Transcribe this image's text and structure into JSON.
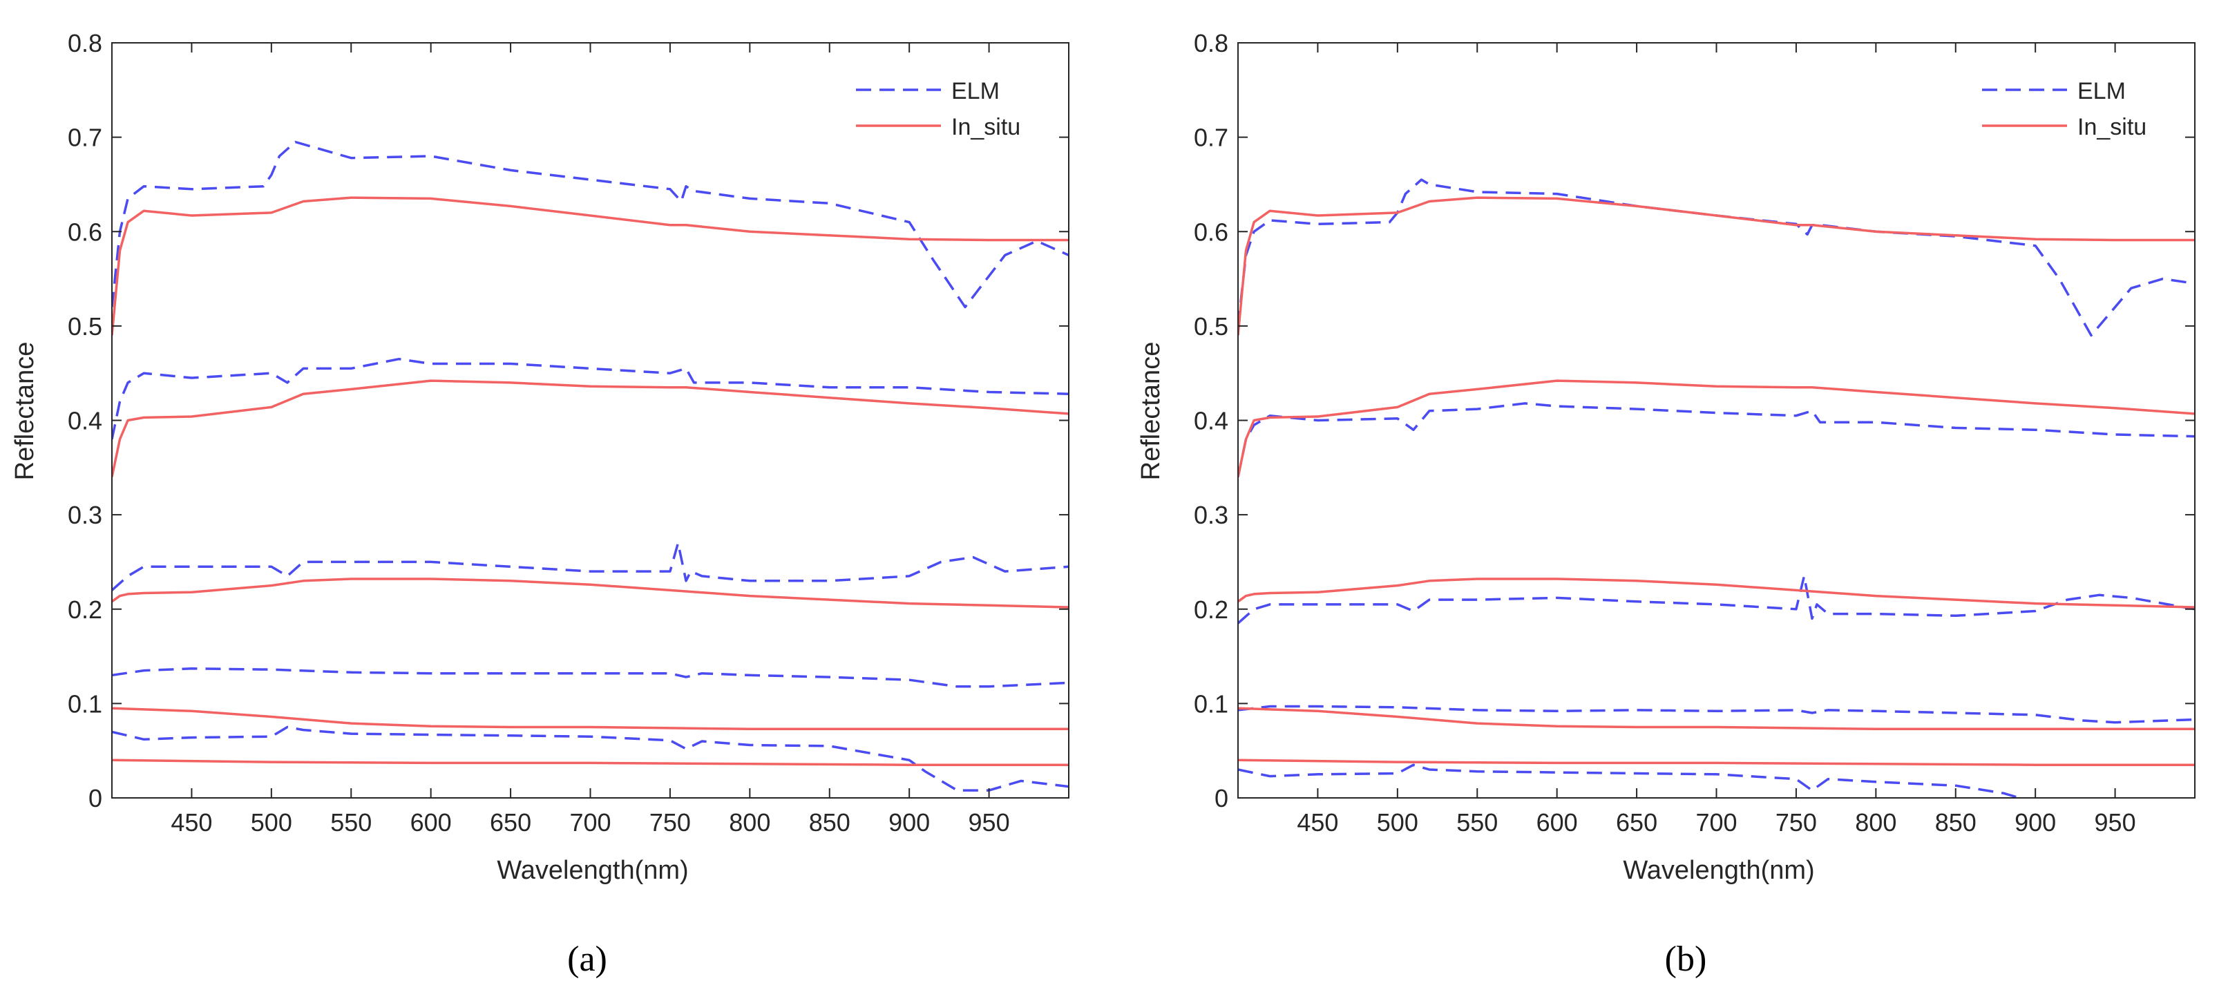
{
  "figure": {
    "captions": [
      "(a)",
      "(b)"
    ]
  },
  "colors": {
    "elm": "#4b4bf2",
    "in_situ": "#f26262",
    "axis": "#262626"
  },
  "chart_data": [
    {
      "type": "line",
      "panel": "(a)",
      "xlabel": "Wavelength(nm)",
      "ylabel": "Reflectance",
      "xlim": [
        400,
        1000
      ],
      "ylim": [
        0,
        0.8
      ],
      "xticks": [
        450,
        500,
        550,
        600,
        650,
        700,
        750,
        800,
        850,
        900,
        950
      ],
      "yticks": [
        0,
        0.1,
        0.2,
        0.3,
        0.4,
        0.5,
        0.6,
        0.7,
        0.8
      ],
      "legend": {
        "position": "top-right",
        "entries": [
          "ELM",
          "In_situ"
        ]
      },
      "series": [
        {
          "name": "ELM",
          "style": "dashed",
          "x": [
            400,
            405,
            410,
            420,
            450,
            495,
            500,
            505,
            515,
            550,
            600,
            650,
            700,
            750,
            757,
            760,
            765,
            800,
            850,
            900,
            915,
            935,
            960,
            980,
            1000
          ],
          "y": [
            0.52,
            0.6,
            0.635,
            0.648,
            0.645,
            0.648,
            0.66,
            0.68,
            0.695,
            0.678,
            0.68,
            0.665,
            0.655,
            0.645,
            0.632,
            0.648,
            0.643,
            0.635,
            0.63,
            0.61,
            0.57,
            0.52,
            0.575,
            0.59,
            0.575
          ]
        },
        {
          "name": "In_situ",
          "style": "solid",
          "x": [
            400,
            405,
            410,
            420,
            450,
            500,
            520,
            550,
            600,
            650,
            700,
            750,
            760,
            800,
            850,
            900,
            950,
            1000
          ],
          "y": [
            0.49,
            0.58,
            0.61,
            0.622,
            0.617,
            0.62,
            0.632,
            0.636,
            0.635,
            0.627,
            0.617,
            0.607,
            0.607,
            0.6,
            0.596,
            0.592,
            0.591,
            0.591
          ]
        },
        {
          "name": "ELM",
          "style": "dashed",
          "x": [
            400,
            405,
            410,
            420,
            450,
            500,
            510,
            520,
            550,
            580,
            600,
            650,
            700,
            750,
            760,
            765,
            800,
            850,
            900,
            950,
            1000
          ],
          "y": [
            0.38,
            0.42,
            0.44,
            0.45,
            0.445,
            0.45,
            0.44,
            0.455,
            0.455,
            0.465,
            0.46,
            0.46,
            0.455,
            0.45,
            0.455,
            0.44,
            0.44,
            0.435,
            0.435,
            0.43,
            0.428
          ]
        },
        {
          "name": "In_situ",
          "style": "solid",
          "x": [
            400,
            405,
            410,
            420,
            450,
            500,
            520,
            550,
            600,
            650,
            700,
            750,
            760,
            800,
            850,
            900,
            950,
            1000
          ],
          "y": [
            0.34,
            0.38,
            0.4,
            0.403,
            0.404,
            0.414,
            0.428,
            0.433,
            0.442,
            0.44,
            0.436,
            0.435,
            0.435,
            0.43,
            0.424,
            0.418,
            0.413,
            0.407
          ]
        },
        {
          "name": "ELM",
          "style": "dashed",
          "x": [
            400,
            410,
            420,
            450,
            500,
            510,
            520,
            550,
            600,
            650,
            700,
            750,
            755,
            760,
            763,
            770,
            800,
            850,
            900,
            920,
            940,
            960,
            1000
          ],
          "y": [
            0.22,
            0.235,
            0.245,
            0.245,
            0.245,
            0.235,
            0.25,
            0.25,
            0.25,
            0.245,
            0.24,
            0.24,
            0.27,
            0.23,
            0.24,
            0.235,
            0.23,
            0.23,
            0.235,
            0.25,
            0.255,
            0.24,
            0.245
          ]
        },
        {
          "name": "In_situ",
          "style": "solid",
          "x": [
            400,
            405,
            410,
            420,
            450,
            500,
            520,
            550,
            600,
            650,
            700,
            750,
            800,
            850,
            900,
            950,
            1000
          ],
          "y": [
            0.208,
            0.214,
            0.216,
            0.217,
            0.218,
            0.225,
            0.23,
            0.232,
            0.232,
            0.23,
            0.226,
            0.22,
            0.214,
            0.21,
            0.206,
            0.204,
            0.202
          ]
        },
        {
          "name": "ELM",
          "style": "dashed",
          "x": [
            400,
            420,
            450,
            500,
            550,
            600,
            650,
            700,
            750,
            760,
            770,
            800,
            850,
            900,
            930,
            950,
            1000
          ],
          "y": [
            0.13,
            0.135,
            0.137,
            0.136,
            0.133,
            0.132,
            0.132,
            0.132,
            0.132,
            0.128,
            0.132,
            0.13,
            0.128,
            0.125,
            0.118,
            0.118,
            0.122
          ]
        },
        {
          "name": "In_situ",
          "style": "solid",
          "x": [
            400,
            450,
            500,
            550,
            600,
            650,
            700,
            750,
            800,
            850,
            900,
            950,
            1000
          ],
          "y": [
            0.095,
            0.092,
            0.086,
            0.079,
            0.076,
            0.075,
            0.075,
            0.074,
            0.073,
            0.073,
            0.073,
            0.073,
            0.073
          ]
        },
        {
          "name": "ELM",
          "style": "dashed",
          "x": [
            400,
            420,
            450,
            500,
            510,
            520,
            550,
            600,
            650,
            700,
            750,
            760,
            770,
            800,
            850,
            900,
            910,
            930,
            950,
            970,
            1000
          ],
          "y": [
            0.07,
            0.062,
            0.064,
            0.065,
            0.075,
            0.072,
            0.068,
            0.067,
            0.066,
            0.065,
            0.061,
            0.052,
            0.06,
            0.056,
            0.055,
            0.04,
            0.028,
            0.008,
            0.008,
            0.018,
            0.012
          ]
        },
        {
          "name": "In_situ",
          "style": "solid",
          "x": [
            400,
            500,
            600,
            700,
            800,
            900,
            1000
          ],
          "y": [
            0.04,
            0.038,
            0.037,
            0.037,
            0.036,
            0.035,
            0.035
          ]
        }
      ]
    },
    {
      "type": "line",
      "panel": "(b)",
      "xlabel": "Wavelength(nm)",
      "ylabel": "Reflectance",
      "xlim": [
        400,
        1000
      ],
      "ylim": [
        0,
        0.8
      ],
      "xticks": [
        450,
        500,
        550,
        600,
        650,
        700,
        750,
        800,
        850,
        900,
        950
      ],
      "yticks": [
        0,
        0.1,
        0.2,
        0.3,
        0.4,
        0.5,
        0.6,
        0.7,
        0.8
      ],
      "legend": {
        "position": "top-right",
        "entries": [
          "ELM",
          "In_situ"
        ]
      },
      "series": [
        {
          "name": "ELM",
          "style": "dashed",
          "x": [
            400,
            405,
            410,
            420,
            450,
            495,
            500,
            505,
            515,
            520,
            550,
            600,
            650,
            700,
            750,
            757,
            760,
            765,
            800,
            850,
            900,
            915,
            935,
            960,
            980,
            1000
          ],
          "y": [
            0.5,
            0.575,
            0.6,
            0.612,
            0.608,
            0.61,
            0.62,
            0.64,
            0.655,
            0.65,
            0.642,
            0.64,
            0.627,
            0.617,
            0.608,
            0.597,
            0.607,
            0.607,
            0.6,
            0.595,
            0.585,
            0.55,
            0.49,
            0.54,
            0.55,
            0.545
          ]
        },
        {
          "name": "In_situ",
          "style": "solid",
          "x": [
            400,
            405,
            410,
            420,
            450,
            500,
            520,
            550,
            600,
            650,
            700,
            750,
            760,
            800,
            850,
            900,
            950,
            1000
          ],
          "y": [
            0.49,
            0.58,
            0.61,
            0.622,
            0.617,
            0.62,
            0.632,
            0.636,
            0.635,
            0.627,
            0.617,
            0.607,
            0.607,
            0.6,
            0.596,
            0.592,
            0.591,
            0.591
          ]
        },
        {
          "name": "ELM",
          "style": "dashed",
          "x": [
            400,
            405,
            410,
            420,
            450,
            500,
            510,
            520,
            550,
            580,
            600,
            650,
            700,
            750,
            760,
            765,
            800,
            850,
            900,
            950,
            1000
          ],
          "y": [
            0.34,
            0.38,
            0.395,
            0.405,
            0.4,
            0.402,
            0.39,
            0.41,
            0.412,
            0.418,
            0.415,
            0.412,
            0.408,
            0.405,
            0.41,
            0.398,
            0.398,
            0.392,
            0.39,
            0.385,
            0.383
          ]
        },
        {
          "name": "In_situ",
          "style": "solid",
          "x": [
            400,
            405,
            410,
            420,
            450,
            500,
            520,
            550,
            600,
            650,
            700,
            750,
            760,
            800,
            850,
            900,
            950,
            1000
          ],
          "y": [
            0.34,
            0.38,
            0.4,
            0.403,
            0.404,
            0.414,
            0.428,
            0.433,
            0.442,
            0.44,
            0.436,
            0.435,
            0.435,
            0.43,
            0.424,
            0.418,
            0.413,
            0.407
          ]
        },
        {
          "name": "ELM",
          "style": "dashed",
          "x": [
            400,
            410,
            420,
            450,
            500,
            510,
            520,
            550,
            600,
            650,
            700,
            750,
            755,
            760,
            763,
            770,
            800,
            850,
            900,
            920,
            940,
            960,
            1000
          ],
          "y": [
            0.185,
            0.2,
            0.205,
            0.205,
            0.205,
            0.198,
            0.21,
            0.21,
            0.212,
            0.208,
            0.205,
            0.2,
            0.235,
            0.19,
            0.205,
            0.195,
            0.195,
            0.193,
            0.198,
            0.21,
            0.215,
            0.212,
            0.2
          ]
        },
        {
          "name": "In_situ",
          "style": "solid",
          "x": [
            400,
            405,
            410,
            420,
            450,
            500,
            520,
            550,
            600,
            650,
            700,
            750,
            800,
            850,
            900,
            950,
            1000
          ],
          "y": [
            0.208,
            0.214,
            0.216,
            0.217,
            0.218,
            0.225,
            0.23,
            0.232,
            0.232,
            0.23,
            0.226,
            0.22,
            0.214,
            0.21,
            0.206,
            0.204,
            0.202
          ]
        },
        {
          "name": "ELM",
          "style": "dashed",
          "x": [
            400,
            420,
            450,
            500,
            550,
            600,
            650,
            700,
            750,
            760,
            770,
            800,
            850,
            900,
            930,
            950,
            1000
          ],
          "y": [
            0.093,
            0.097,
            0.097,
            0.096,
            0.093,
            0.092,
            0.093,
            0.092,
            0.093,
            0.09,
            0.093,
            0.092,
            0.09,
            0.088,
            0.082,
            0.08,
            0.083
          ]
        },
        {
          "name": "In_situ",
          "style": "solid",
          "x": [
            400,
            450,
            500,
            550,
            600,
            650,
            700,
            750,
            800,
            850,
            900,
            950,
            1000
          ],
          "y": [
            0.095,
            0.092,
            0.086,
            0.079,
            0.076,
            0.075,
            0.075,
            0.074,
            0.073,
            0.073,
            0.073,
            0.073,
            0.073
          ]
        },
        {
          "name": "ELM",
          "style": "dashed",
          "x": [
            400,
            420,
            450,
            500,
            510,
            520,
            550,
            600,
            650,
            700,
            750,
            760,
            770,
            800,
            850,
            880,
            890
          ],
          "y": [
            0.03,
            0.023,
            0.025,
            0.026,
            0.035,
            0.03,
            0.028,
            0.027,
            0.026,
            0.025,
            0.02,
            0.008,
            0.02,
            0.017,
            0.013,
            0.005,
            0.0
          ]
        },
        {
          "name": "In_situ",
          "style": "solid",
          "x": [
            400,
            500,
            600,
            700,
            800,
            900,
            1000
          ],
          "y": [
            0.04,
            0.038,
            0.037,
            0.037,
            0.036,
            0.035,
            0.035
          ]
        }
      ]
    }
  ]
}
